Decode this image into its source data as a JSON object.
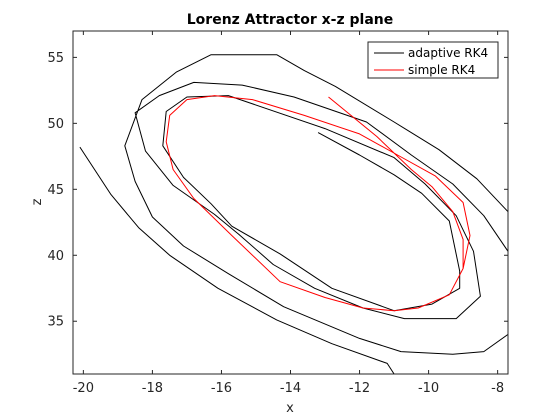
{
  "chart_data": {
    "type": "line",
    "title": "Lorenz Attractor x-z plane",
    "xlabel": "x",
    "ylabel": "z",
    "xlim": [
      -20.3,
      -7.7
    ],
    "ylim": [
      31,
      57
    ],
    "xticks": [
      -20,
      -18,
      -16,
      -14,
      -12,
      -10,
      -8
    ],
    "yticks": [
      35,
      40,
      45,
      50,
      55
    ],
    "grid": false,
    "legend_position": "top-right",
    "series": [
      {
        "name": "adaptive RK4",
        "color": "#000000",
        "points": [
          [
            -20.1,
            48.2
          ],
          [
            -19.2,
            44.6
          ],
          [
            -18.4,
            42.1
          ],
          [
            -17.5,
            40.0
          ],
          [
            -16.1,
            37.5
          ],
          [
            -14.4,
            35.1
          ],
          [
            -12.8,
            33.3
          ],
          [
            -11.2,
            31.8
          ],
          [
            -11.0,
            31.0
          ],
          null,
          [
            -7.7,
            34.0
          ],
          [
            -8.4,
            32.7
          ],
          [
            -9.3,
            32.5
          ],
          [
            -10.8,
            32.7
          ],
          [
            -12.0,
            33.7
          ],
          [
            -14.2,
            36.1
          ],
          [
            -15.8,
            38.6
          ],
          [
            -17.1,
            40.7
          ],
          [
            -18.0,
            42.9
          ],
          [
            -18.5,
            45.6
          ],
          [
            -18.8,
            48.3
          ],
          [
            -18.3,
            51.8
          ],
          [
            -17.3,
            53.9
          ],
          [
            -16.3,
            55.2
          ],
          [
            -14.4,
            55.2
          ],
          [
            -13.6,
            54.0
          ],
          [
            -12.7,
            52.8
          ],
          [
            -11.0,
            50.1
          ],
          [
            -9.7,
            48.0
          ],
          [
            -8.6,
            45.8
          ],
          [
            -7.7,
            43.3
          ],
          null,
          [
            -7.7,
            40.3
          ],
          [
            -8.4,
            43.0
          ],
          [
            -9.3,
            45.4
          ],
          [
            -10.5,
            47.6
          ],
          [
            -11.8,
            50.1
          ],
          [
            -13.9,
            52.0
          ],
          [
            -15.4,
            52.9
          ],
          [
            -16.8,
            53.1
          ],
          [
            -17.8,
            52.1
          ],
          [
            -18.5,
            50.8
          ],
          [
            -18.2,
            47.9
          ],
          [
            -17.4,
            45.3
          ],
          [
            -16.2,
            43.1
          ],
          [
            -15.5,
            41.6
          ],
          [
            -14.5,
            39.3
          ],
          [
            -13.3,
            37.5
          ],
          [
            -11.9,
            36.0
          ],
          [
            -10.7,
            35.2
          ],
          [
            -9.2,
            35.2
          ],
          [
            -8.5,
            36.9
          ],
          [
            -8.7,
            40.3
          ],
          [
            -9.2,
            43.0
          ],
          [
            -10.1,
            45.4
          ],
          [
            -11.0,
            47.4
          ],
          [
            -13.0,
            49.6
          ],
          [
            -15.8,
            52.1
          ],
          [
            -17.0,
            52.0
          ],
          [
            -17.6,
            50.9
          ],
          [
            -17.7,
            48.3
          ],
          [
            -17.1,
            45.9
          ],
          [
            -16.3,
            43.9
          ],
          [
            -15.7,
            42.2
          ],
          [
            -14.3,
            40.1
          ],
          [
            -12.8,
            37.5
          ],
          [
            -11.0,
            35.8
          ],
          [
            -9.9,
            36.3
          ],
          [
            -9.1,
            37.5
          ],
          [
            -9.1,
            38.8
          ],
          [
            -9.4,
            42.6
          ],
          [
            -10.2,
            44.7
          ],
          [
            -11.0,
            46.1
          ],
          [
            -12.0,
            47.6
          ],
          [
            -13.2,
            49.3
          ]
        ]
      },
      {
        "name": "simple RK4",
        "color": "#ff0000",
        "points": [
          [
            -12.9,
            52.0
          ],
          [
            -11.5,
            49.0
          ],
          [
            -10.5,
            46.5
          ],
          [
            -9.9,
            45.2
          ],
          [
            -9.3,
            43.3
          ],
          [
            -9.0,
            41.2
          ],
          [
            -9.0,
            39.0
          ],
          [
            -9.4,
            37.0
          ],
          [
            -10.3,
            36.0
          ],
          [
            -11.0,
            35.8
          ],
          [
            -11.9,
            36.0
          ],
          [
            -13.0,
            36.8
          ],
          [
            -14.3,
            38.0
          ],
          [
            -15.7,
            41.5
          ],
          [
            -16.8,
            44.3
          ],
          [
            -17.4,
            46.5
          ],
          [
            -17.6,
            48.6
          ],
          [
            -17.5,
            50.6
          ],
          [
            -17.0,
            51.8
          ],
          [
            -16.2,
            52.1
          ],
          [
            -15.1,
            51.8
          ],
          [
            -13.6,
            50.6
          ],
          [
            -12.0,
            49.2
          ],
          [
            -10.9,
            47.6
          ],
          [
            -9.8,
            46.0
          ],
          [
            -9.0,
            44.0
          ],
          [
            -8.8,
            41.5
          ],
          [
            -9.0,
            39.0
          ]
        ]
      }
    ]
  }
}
